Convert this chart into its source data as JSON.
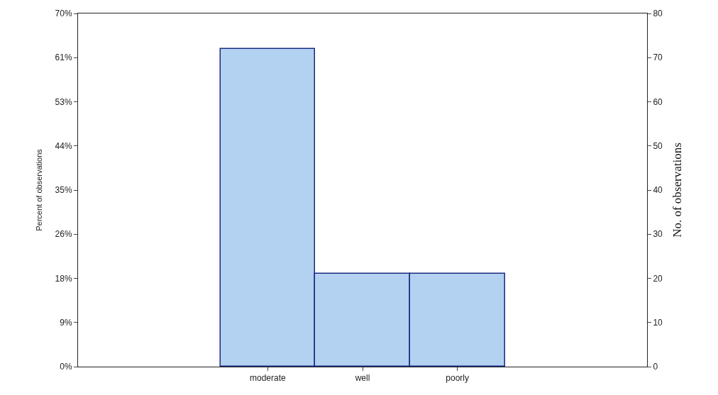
{
  "chart_data": {
    "type": "bar",
    "categories": [
      null,
      "moderate",
      "well",
      "poorly",
      null
    ],
    "series": [
      {
        "color": "#b3d1f0",
        "values": [
          null,
          72,
          21,
          21,
          null
        ],
        "axis": "y2"
      }
    ],
    "ylabel": "Percent of observations",
    "y2label": "No. of observations",
    "ylim": [
      0,
      70
    ],
    "yticks": [
      {
        "value": 0,
        "label": "0%"
      },
      {
        "value": 8.75,
        "label": "9%"
      },
      {
        "value": 17.5,
        "label": "18%"
      },
      {
        "value": 26.25,
        "label": "26%"
      },
      {
        "value": 35,
        "label": "35%"
      },
      {
        "value": 43.75,
        "label": "44%"
      },
      {
        "value": 52.5,
        "label": "53%"
      },
      {
        "value": 61.25,
        "label": "61%"
      },
      {
        "value": 70,
        "label": "70%"
      }
    ],
    "y2lim": [
      0,
      80
    ],
    "y2ticks": [
      0,
      10,
      20,
      30,
      40,
      50,
      60,
      70,
      80
    ]
  }
}
